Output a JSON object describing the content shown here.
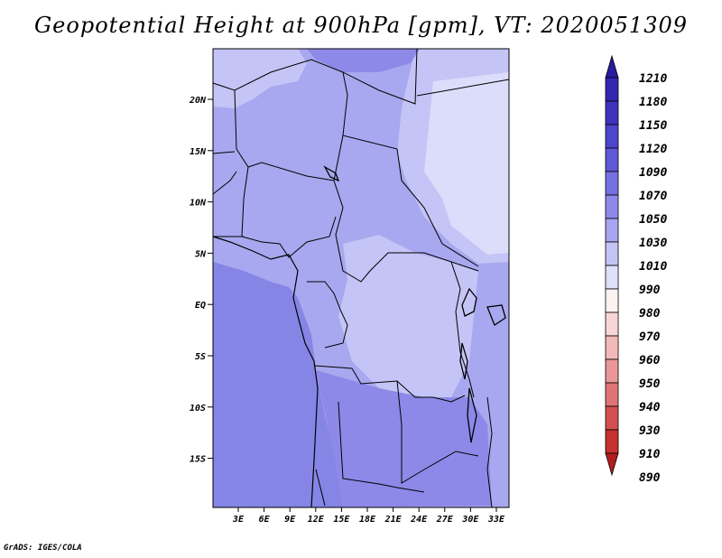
{
  "title": "Geopotential Height at 900hPa [gpm], VT: 2020051309",
  "footer": "GrADS: IGES/COLA",
  "map": {
    "lat_labels": [
      "20N",
      "15N",
      "10N",
      "5N",
      "EQ",
      "5S",
      "10S",
      "15S"
    ],
    "lon_labels": [
      "3E",
      "6E",
      "9E",
      "12E",
      "15E",
      "18E",
      "21E",
      "24E",
      "27E",
      "30E",
      "33E"
    ]
  },
  "colorbar": {
    "levels": [
      "1210",
      "1180",
      "1150",
      "1120",
      "1090",
      "1070",
      "1050",
      "1030",
      "1010",
      "990",
      "980",
      "970",
      "960",
      "950",
      "940",
      "930",
      "910",
      "890"
    ],
    "colors": [
      "#2a1aa0",
      "#3326b0",
      "#3f33be",
      "#4d45cb",
      "#5f59d6",
      "#7570e0",
      "#8d89e8",
      "#a7a5ef",
      "#c3c3f5",
      "#dfe0fa",
      "#fdf2f2",
      "#f8d6d6",
      "#f2b9b9",
      "#e99797",
      "#df7474",
      "#d35050",
      "#c53030",
      "#b31c1c"
    ]
  },
  "regions": {
    "ocean_color": "#8585e6",
    "land_mid_color": "#a8a8f0",
    "land_light_color": "#c4c4f6",
    "land_lightest_color": "#dcdcfb"
  }
}
